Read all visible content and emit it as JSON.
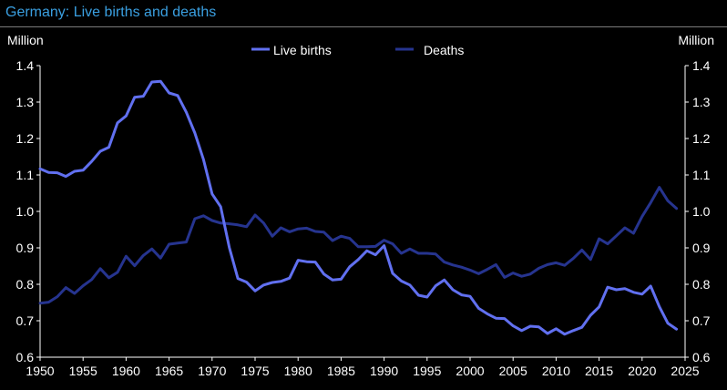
{
  "title": "Germany: Live births and deaths",
  "chart_data": {
    "type": "line",
    "title": "Germany: Live births and deaths",
    "ylabel_left": "Million",
    "ylabel_right": "Million",
    "ylim": [
      0.6,
      1.4
    ],
    "yticks": [
      "0.6",
      "0.7",
      "0.8",
      "0.9",
      "1.0",
      "1.1",
      "1.2",
      "1.3",
      "1.4"
    ],
    "xlim": [
      1950,
      2025
    ],
    "xticks": [
      "1950",
      "1955",
      "1960",
      "1965",
      "1970",
      "1975",
      "1980",
      "1985",
      "1990",
      "1995",
      "2000",
      "2005",
      "2010",
      "2015",
      "2020",
      "2025"
    ],
    "legend_position": "top-center",
    "x": [
      1950,
      1951,
      1952,
      1953,
      1954,
      1955,
      1956,
      1957,
      1958,
      1959,
      1960,
      1961,
      1962,
      1963,
      1964,
      1965,
      1966,
      1967,
      1968,
      1969,
      1970,
      1971,
      1972,
      1973,
      1974,
      1975,
      1976,
      1977,
      1978,
      1979,
      1980,
      1981,
      1982,
      1983,
      1984,
      1985,
      1986,
      1987,
      1988,
      1989,
      1990,
      1991,
      1992,
      1993,
      1994,
      1995,
      1996,
      1997,
      1998,
      1999,
      2000,
      2001,
      2002,
      2003,
      2004,
      2005,
      2006,
      2007,
      2008,
      2009,
      2010,
      2011,
      2012,
      2013,
      2014,
      2015,
      2016,
      2017,
      2018,
      2019,
      2020,
      2021,
      2022,
      2023,
      2024
    ],
    "series": [
      {
        "name": "Live births",
        "color": "#6170f0",
        "values": [
          1.117,
          1.107,
          1.106,
          1.096,
          1.11,
          1.113,
          1.137,
          1.165,
          1.176,
          1.243,
          1.262,
          1.313,
          1.316,
          1.355,
          1.357,
          1.325,
          1.318,
          1.272,
          1.215,
          1.142,
          1.048,
          1.013,
          0.901,
          0.816,
          0.806,
          0.782,
          0.798,
          0.805,
          0.808,
          0.817,
          0.866,
          0.862,
          0.861,
          0.828,
          0.812,
          0.814,
          0.848,
          0.868,
          0.892,
          0.881,
          0.906,
          0.83,
          0.809,
          0.798,
          0.77,
          0.765,
          0.796,
          0.812,
          0.785,
          0.771,
          0.767,
          0.734,
          0.719,
          0.707,
          0.706,
          0.686,
          0.673,
          0.685,
          0.683,
          0.665,
          0.678,
          0.663,
          0.673,
          0.682,
          0.715,
          0.738,
          0.792,
          0.785,
          0.788,
          0.778,
          0.773,
          0.795,
          0.739,
          0.693,
          0.677
        ]
      },
      {
        "name": "Deaths",
        "color": "#26348f",
        "values": [
          0.748,
          0.751,
          0.766,
          0.791,
          0.775,
          0.796,
          0.813,
          0.843,
          0.818,
          0.833,
          0.877,
          0.851,
          0.879,
          0.897,
          0.872,
          0.91,
          0.913,
          0.916,
          0.98,
          0.988,
          0.975,
          0.968,
          0.966,
          0.963,
          0.958,
          0.99,
          0.968,
          0.932,
          0.955,
          0.944,
          0.952,
          0.954,
          0.945,
          0.943,
          0.92,
          0.932,
          0.926,
          0.903,
          0.903,
          0.904,
          0.921,
          0.911,
          0.885,
          0.897,
          0.885,
          0.885,
          0.883,
          0.861,
          0.853,
          0.847,
          0.839,
          0.829,
          0.841,
          0.854,
          0.819,
          0.831,
          0.822,
          0.828,
          0.844,
          0.854,
          0.859,
          0.852,
          0.871,
          0.894,
          0.868,
          0.925,
          0.911,
          0.933,
          0.955,
          0.94,
          0.986,
          1.024,
          1.066,
          1.029,
          1.008
        ]
      }
    ]
  }
}
